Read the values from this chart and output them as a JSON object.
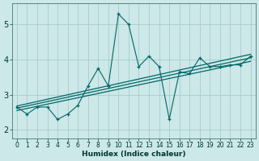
{
  "xlabel": "Humidex (Indice chaleur)",
  "bg_color": "#cce8e8",
  "line_color": "#006666",
  "grid_color": "#aacccc",
  "xlim": [
    -0.5,
    23.5
  ],
  "ylim": [
    1.75,
    5.6
  ],
  "xticks": [
    0,
    1,
    2,
    3,
    4,
    5,
    6,
    7,
    8,
    9,
    10,
    11,
    12,
    13,
    14,
    15,
    16,
    17,
    18,
    19,
    20,
    21,
    22,
    23
  ],
  "yticks": [
    2,
    3,
    4,
    5
  ],
  "jagged": {
    "x": [
      0,
      1,
      2,
      3,
      4,
      5,
      6,
      7,
      8,
      9,
      10,
      11,
      12,
      13,
      14,
      15,
      16,
      17,
      18,
      19,
      20,
      21,
      22,
      23
    ],
    "y": [
      2.65,
      2.45,
      2.65,
      2.65,
      2.3,
      2.45,
      2.7,
      3.25,
      3.75,
      3.25,
      5.3,
      5.0,
      3.8,
      4.1,
      3.8,
      2.3,
      3.65,
      3.6,
      4.05,
      3.8,
      3.8,
      3.85,
      3.85,
      4.1
    ]
  },
  "regression_lines": [
    {
      "x0": 0,
      "y0": 2.55,
      "x1": 23,
      "y1": 3.95
    },
    {
      "x0": 0,
      "y0": 2.62,
      "x1": 23,
      "y1": 4.05
    },
    {
      "x0": 0,
      "y0": 2.68,
      "x1": 23,
      "y1": 4.15
    }
  ]
}
